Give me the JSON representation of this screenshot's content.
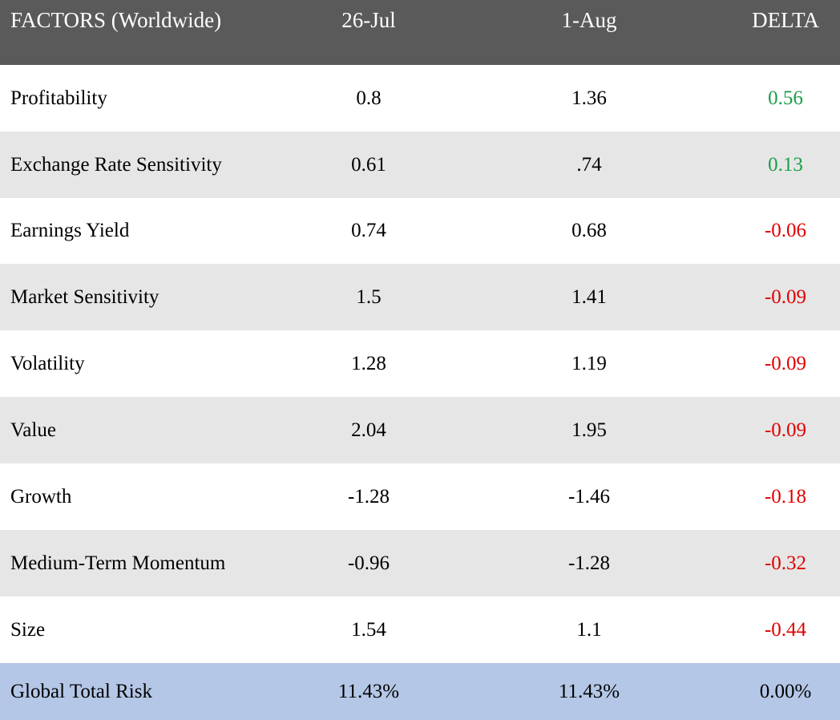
{
  "header": {
    "factor_label": "FACTORS (Worldwide)",
    "col_jul": "26-Jul",
    "col_aug": "1-Aug",
    "col_delta": "DELTA"
  },
  "colors": {
    "header_bg": "#5a5a5a",
    "stripe_bg": "#e6e6e6",
    "total_bg": "#b4c7e7",
    "positive": "#1a9e4b",
    "negative": "#e00000"
  },
  "rows": [
    {
      "name": "Profitability",
      "jul": "0.8",
      "aug": "1.36",
      "delta": "0.56",
      "sign": "positive"
    },
    {
      "name": "Exchange Rate Sensitivity",
      "jul": "0.61",
      "aug": ".74",
      "delta": "0.13",
      "sign": "positive"
    },
    {
      "name": "Earnings Yield",
      "jul": "0.74",
      "aug": "0.68",
      "delta": "-0.06",
      "sign": "negative"
    },
    {
      "name": "Market Sensitivity",
      "jul": "1.5",
      "aug": "1.41",
      "delta": "-0.09",
      "sign": "negative"
    },
    {
      "name": "Volatility",
      "jul": "1.28",
      "aug": "1.19",
      "delta": "-0.09",
      "sign": "negative"
    },
    {
      "name": "Value",
      "jul": "2.04",
      "aug": "1.95",
      "delta": "-0.09",
      "sign": "negative"
    },
    {
      "name": "Growth",
      "jul": "-1.28",
      "aug": "-1.46",
      "delta": "-0.18",
      "sign": "negative"
    },
    {
      "name": "Medium-Term Momentum",
      "jul": "-0.96",
      "aug": "-1.28",
      "delta": "-0.32",
      "sign": "negative"
    },
    {
      "name": "Size",
      "jul": "1.54",
      "aug": "1.1",
      "delta": "-0.44",
      "sign": "negative"
    }
  ],
  "total": {
    "name": "Global Total Risk",
    "jul": "11.43%",
    "aug": "11.43%",
    "delta": "0.00%"
  }
}
